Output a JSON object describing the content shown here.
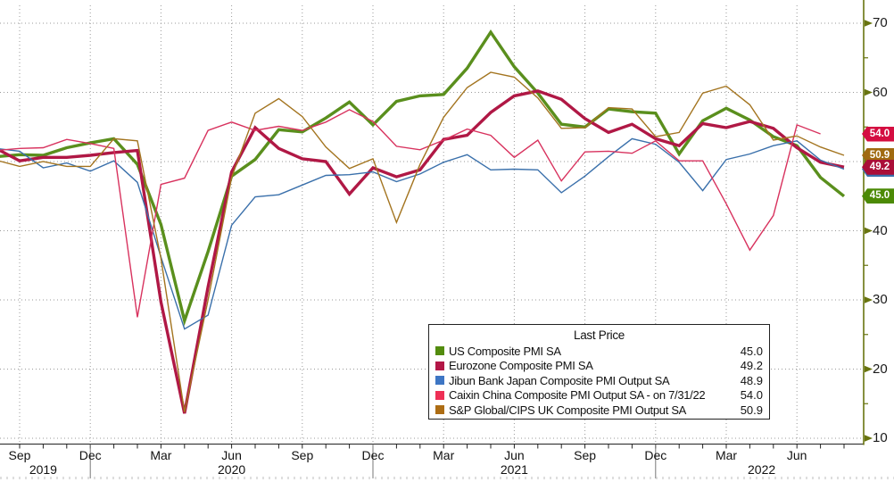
{
  "chart_data": {
    "type": "line",
    "title": "Last Price",
    "x_months": [
      "Aug 2019",
      "Sep 2019",
      "Oct 2019",
      "Nov 2019",
      "Dec 2019",
      "Jan 2020",
      "Feb 2020",
      "Mar 2020",
      "Apr 2020",
      "May 2020",
      "Jun 2020",
      "Jul 2020",
      "Aug 2020",
      "Sep 2020",
      "Oct 2020",
      "Nov 2020",
      "Dec 2020",
      "Jan 2021",
      "Feb 2021",
      "Mar 2021",
      "Apr 2021",
      "May 2021",
      "Jun 2021",
      "Jul 2021",
      "Aug 2021",
      "Sep 2021",
      "Oct 2021",
      "Nov 2021",
      "Dec 2021",
      "Jan 2022",
      "Feb 2022",
      "Mar 2022",
      "Apr 2022",
      "May 2022",
      "Jun 2022",
      "Jul 2022",
      "Aug 2022"
    ],
    "ylim": [
      10,
      70
    ],
    "y_ticks": [
      10,
      20,
      30,
      40,
      50,
      60,
      70
    ],
    "grid": "dotted",
    "legend_position": "bottom-center-box",
    "series": [
      {
        "name": "US Composite PMI SA",
        "last_label": "45.0",
        "last_value": 45.0,
        "color": "#5a8f1d",
        "swatch": "#538c0e",
        "badge_color": "#4c8a06",
        "thick": true,
        "badge_z": 7,
        "values": [
          50.7,
          51.0,
          50.9,
          52.0,
          52.7,
          53.3,
          49.6,
          40.9,
          27.0,
          37.0,
          47.9,
          50.3,
          54.6,
          54.3,
          56.3,
          58.6,
          55.3,
          58.7,
          59.5,
          59.7,
          63.5,
          68.7,
          63.7,
          59.9,
          55.4,
          55.0,
          57.6,
          57.2,
          57.0,
          51.1,
          55.9,
          57.7,
          56.0,
          53.6,
          52.3,
          47.7,
          45.0
        ]
      },
      {
        "name": "Eurozone Composite PMI SA",
        "last_label": "49.2",
        "last_value": 49.2,
        "color": "#b01845",
        "swatch": "#b31747",
        "badge_color": "#aa0e38",
        "thick": true,
        "badge_z": 6,
        "values": [
          51.9,
          50.1,
          50.6,
          50.6,
          50.9,
          51.3,
          51.6,
          29.7,
          13.6,
          31.9,
          48.5,
          54.9,
          51.9,
          50.4,
          50.0,
          45.3,
          49.1,
          47.8,
          48.8,
          53.2,
          53.8,
          57.1,
          59.5,
          60.2,
          59.0,
          56.2,
          54.2,
          55.4,
          53.3,
          52.3,
          55.5,
          54.9,
          55.8,
          54.8,
          52.0,
          49.9,
          49.2
        ]
      },
      {
        "name": "Jibun Bank Japan Composite PMI Output SA",
        "last_label": "48.9",
        "last_value": 48.9,
        "color": "#3a70ab",
        "swatch": "#3e76c4",
        "badge_color": "#3a70ab",
        "thick": false,
        "badge_z": 4,
        "values": [
          51.9,
          51.5,
          49.1,
          49.8,
          48.6,
          50.1,
          47.0,
          36.2,
          25.8,
          27.8,
          40.8,
          44.9,
          45.2,
          46.6,
          48.0,
          48.1,
          48.5,
          47.1,
          48.2,
          49.9,
          51.0,
          48.8,
          48.9,
          48.8,
          45.5,
          47.9,
          50.7,
          53.3,
          52.5,
          49.9,
          45.8,
          50.3,
          51.1,
          52.3,
          53.0,
          50.2,
          48.9
        ]
      },
      {
        "name": "Caixin China Composite PMI Output SA -  on 7/31/22",
        "last_label": "54.0",
        "last_value": 54.0,
        "color": "#d8325e",
        "swatch": "#ee2f55",
        "badge_color": "#d40e41",
        "thick": false,
        "badge_z": 8,
        "values": [
          51.6,
          51.9,
          52.0,
          53.2,
          52.6,
          51.9,
          27.5,
          46.7,
          47.6,
          54.5,
          55.7,
          54.5,
          55.1,
          54.5,
          55.7,
          57.5,
          55.8,
          52.2,
          51.7,
          53.1,
          54.7,
          53.8,
          50.6,
          53.1,
          47.2,
          51.4,
          51.5,
          51.2,
          53.0,
          50.1,
          50.1,
          43.9,
          37.2,
          42.2,
          55.3,
          54.0
        ]
      },
      {
        "name": "S&P Global/CIPS UK Composite PMI Output SA",
        "last_label": "50.9",
        "last_value": 50.9,
        "color": "#a3741f",
        "swatch": "#ad6d14",
        "badge_color": "#a06a10",
        "thick": false,
        "badge_z": 5,
        "values": [
          50.2,
          49.3,
          50.0,
          49.3,
          49.3,
          53.3,
          53.0,
          36.0,
          13.8,
          30.0,
          47.7,
          57.0,
          59.1,
          56.5,
          52.1,
          49.0,
          50.4,
          41.2,
          49.6,
          56.4,
          60.7,
          62.9,
          62.2,
          59.2,
          54.8,
          54.9,
          57.8,
          57.6,
          53.6,
          54.2,
          59.9,
          60.9,
          58.2,
          53.1,
          53.7,
          52.1,
          50.9
        ]
      }
    ],
    "x_axis": {
      "quarter_ticks": [
        {
          "label": "Sep",
          "i": 1
        },
        {
          "label": "Dec",
          "i": 4
        },
        {
          "label": "Mar",
          "i": 7
        },
        {
          "label": "Jun",
          "i": 10
        },
        {
          "label": "Sep",
          "i": 13
        },
        {
          "label": "Dec",
          "i": 16
        },
        {
          "label": "Mar",
          "i": 19
        },
        {
          "label": "Jun",
          "i": 22
        },
        {
          "label": "Sep",
          "i": 25
        },
        {
          "label": "Dec",
          "i": 28
        },
        {
          "label": "Mar",
          "i": 31
        },
        {
          "label": "Jun",
          "i": 34
        }
      ],
      "years": [
        {
          "label": "2019",
          "i": 2
        },
        {
          "label": "2020",
          "i": 10
        },
        {
          "label": "2021",
          "i": 22
        },
        {
          "label": "2022",
          "i": 32.5
        }
      ],
      "year_dividers_i": [
        4,
        16,
        28
      ]
    },
    "colors": {
      "axis": "#68740f",
      "gridline": "#9a9a9a",
      "text": "#1a1a1a"
    }
  },
  "legend": {
    "title": "Last Price"
  }
}
